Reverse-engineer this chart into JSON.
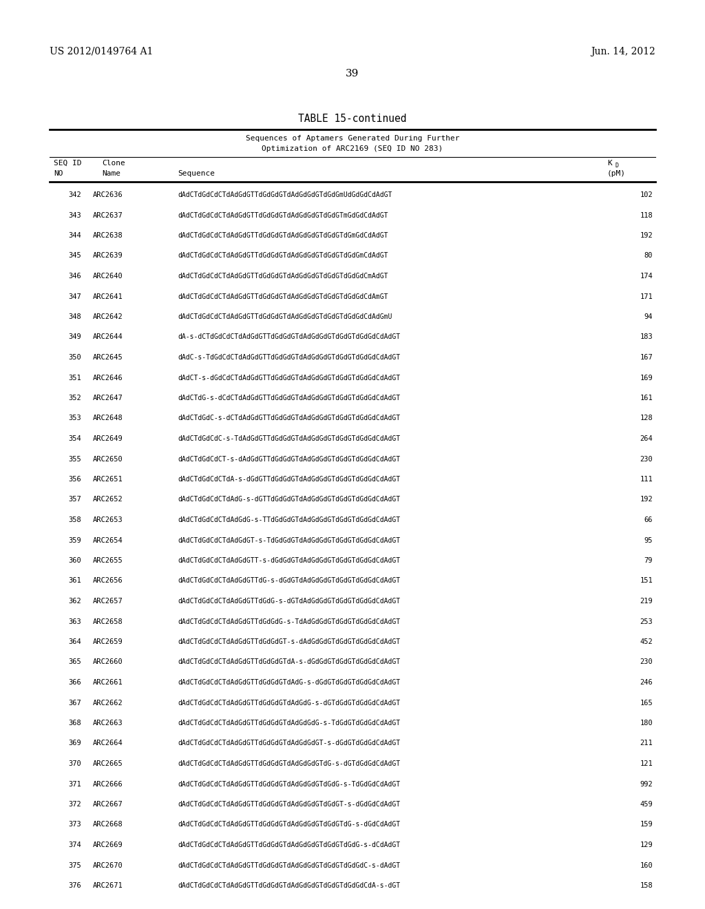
{
  "header_left": "US 2012/0149764 A1",
  "header_right": "Jun. 14, 2012",
  "page_number": "39",
  "table_title": "TABLE 15-continued",
  "table_subtitle1": "Sequences of Aptamers Generated During Further",
  "table_subtitle2": "Optimization of ARC2169 (SEQ ID NO 283)",
  "rows": [
    [
      "342",
      "ARC2636",
      "dAdCTdGdCdCTdAdGdGTTdGdGdGTdAdGdGdGTdGdGmUdGdGdCdAdGT",
      "102"
    ],
    [
      "343",
      "ARC2637",
      "dAdCTdGdCdCTdAdGdGTTdGdGdGTdAdGdGdGTdGdGTmGdGdCdAdGT",
      "118"
    ],
    [
      "344",
      "ARC2638",
      "dAdCTdGdCdCTdAdGdGTTdGdGdGTdAdGdGdGTdGdGTdGmGdCdAdGT",
      "192"
    ],
    [
      "345",
      "ARC2639",
      "dAdCTdGdCdCTdAdGdGTTdGdGdGTdAdGdGdGTdGdGTdGdGmCdAdGT",
      "80"
    ],
    [
      "346",
      "ARC2640",
      "dAdCTdGdCdCTdAdGdGTTdGdGdGTdAdGdGdGTdGdGTdGdGdCmAdGT",
      "174"
    ],
    [
      "347",
      "ARC2641",
      "dAdCTdGdCdCTdAdGdGTTdGdGdGTdAdGdGdGTdGdGTdGdGdCdAmGT",
      "171"
    ],
    [
      "348",
      "ARC2642",
      "dAdCTdGdCdCTdAdGdGTTdGdGdGTdAdGdGdGTdGdGTdGdGdCdAdGmU",
      "94"
    ],
    [
      "349",
      "ARC2644",
      "dA-s-dCTdGdCdCTdAdGdGTTdGdGdGTdAdGdGdGTdGdGTdGdGdCdAdGT",
      "183"
    ],
    [
      "350",
      "ARC2645",
      "dAdC-s-TdGdCdCTdAdGdGTTdGdGdGTdAdGdGdGTdGdGTdGdGdCdAdGT",
      "167"
    ],
    [
      "351",
      "ARC2646",
      "dAdCT-s-dGdCdCTdAdGdGTTdGdGdGTdAdGdGdGTdGdGTdGdGdCdAdGT",
      "169"
    ],
    [
      "352",
      "ARC2647",
      "dAdCTdG-s-dCdCTdAdGdGTTdGdGdGTdAdGdGdGTdGdGTdGdGdCdAdGT",
      "161"
    ],
    [
      "353",
      "ARC2648",
      "dAdCTdGdC-s-dCTdAdGdGTTdGdGdGTdAdGdGdGTdGdGTdGdGdCdAdGT",
      "128"
    ],
    [
      "354",
      "ARC2649",
      "dAdCTdGdCdC-s-TdAdGdGTTdGdGdGTdAdGdGdGTdGdGTdGdGdCdAdGT",
      "264"
    ],
    [
      "355",
      "ARC2650",
      "dAdCTdGdCdCT-s-dAdGdGTTdGdGdGTdAdGdGdGTdGdGTdGdGdCdAdGT",
      "230"
    ],
    [
      "356",
      "ARC2651",
      "dAdCTdGdCdCTdA-s-dGdGTTdGdGdGTdAdGdGdGTdGdGTdGdGdCdAdGT",
      "111"
    ],
    [
      "357",
      "ARC2652",
      "dAdCTdGdCdCTdAdG-s-dGTTdGdGdGTdAdGdGdGTdGdGTdGdGdCdAdGT",
      "192"
    ],
    [
      "358",
      "ARC2653",
      "dAdCTdGdCdCTdAdGdG-s-TTdGdGdGTdAdGdGdGTdGdGTdGdGdCdAdGT",
      "66"
    ],
    [
      "359",
      "ARC2654",
      "dAdCTdGdCdCTdAdGdGT-s-TdGdGdGTdAdGdGdGTdGdGTdGdGdCdAdGT",
      "95"
    ],
    [
      "360",
      "ARC2655",
      "dAdCTdGdCdCTdAdGdGTT-s-dGdGdGTdAdGdGdGTdGdGTdGdGdCdAdGT",
      "79"
    ],
    [
      "361",
      "ARC2656",
      "dAdCTdGdCdCTdAdGdGTTdG-s-dGdGTdAdGdGdGTdGdGTdGdGdCdAdGT",
      "151"
    ],
    [
      "362",
      "ARC2657",
      "dAdCTdGdCdCTdAdGdGTTdGdG-s-dGTdAdGdGdGTdGdGTdGdGdCdAdGT",
      "219"
    ],
    [
      "363",
      "ARC2658",
      "dAdCTdGdCdCTdAdGdGTTdGdGdG-s-TdAdGdGdGTdGdGTdGdGdCdAdGT",
      "253"
    ],
    [
      "364",
      "ARC2659",
      "dAdCTdGdCdCTdAdGdGTTdGdGdGT-s-dAdGdGdGTdGdGTdGdGdCdAdGT",
      "452"
    ],
    [
      "365",
      "ARC2660",
      "dAdCTdGdCdCTdAdGdGTTdGdGdGTdA-s-dGdGdGTdGdGTdGdGdCdAdGT",
      "230"
    ],
    [
      "366",
      "ARC2661",
      "dAdCTdGdCdCTdAdGdGTTdGdGdGTdAdG-s-dGdGTdGdGTdGdGdCdAdGT",
      "246"
    ],
    [
      "367",
      "ARC2662",
      "dAdCTdGdCdCTdAdGdGTTdGdGdGTdAdGdG-s-dGTdGdGTdGdGdCdAdGT",
      "165"
    ],
    [
      "368",
      "ARC2663",
      "dAdCTdGdCdCTdAdGdGTTdGdGdGTdAdGdGdG-s-TdGdGTdGdGdCdAdGT",
      "180"
    ],
    [
      "369",
      "ARC2664",
      "dAdCTdGdCdCTdAdGdGTTdGdGdGTdAdGdGdGT-s-dGdGTdGdGdCdAdGT",
      "211"
    ],
    [
      "370",
      "ARC2665",
      "dAdCTdGdCdCTdAdGdGTTdGdGdGTdAdGdGdGTdG-s-dGTdGdGdCdAdGT",
      "121"
    ],
    [
      "371",
      "ARC2666",
      "dAdCTdGdCdCTdAdGdGTTdGdGdGTdAdGdGdGTdGdG-s-TdGdGdCdAdGT",
      "992"
    ],
    [
      "372",
      "ARC2667",
      "dAdCTdGdCdCTdAdGdGTTdGdGdGTdAdGdGdGTdGdGT-s-dGdGdCdAdGT",
      "459"
    ],
    [
      "373",
      "ARC2668",
      "dAdCTdGdCdCTdAdGdGTTdGdGdGTdAdGdGdGTdGdGTdG-s-dGdCdAdGT",
      "159"
    ],
    [
      "374",
      "ARC2669",
      "dAdCTdGdCdCTdAdGdGTTdGdGdGTdAdGdGdGTdGdGTdGdG-s-dCdAdGT",
      "129"
    ],
    [
      "375",
      "ARC2670",
      "dAdCTdGdCdCTdAdGdGTTdGdGdGTdAdGdGdGTdGdGTdGdGdC-s-dAdGT",
      "160"
    ],
    [
      "376",
      "ARC2671",
      "dAdCTdGdCdCTdAdGdGTTdGdGdGTdAdGdGdGTdGdGTdGdGdCdA-s-dGT",
      "158"
    ]
  ],
  "background_color": "#ffffff",
  "text_color": "#000000"
}
